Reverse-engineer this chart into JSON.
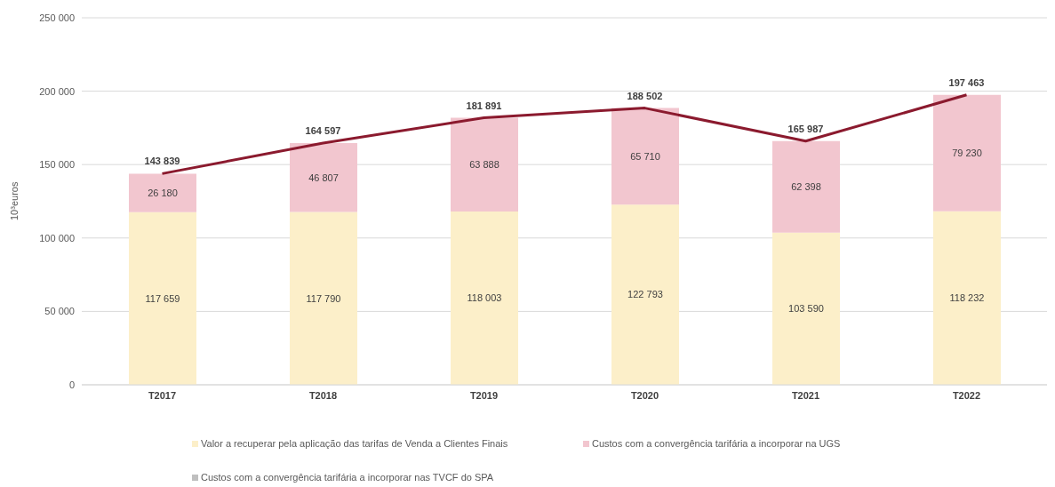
{
  "chart_data": {
    "type": "bar",
    "stacked": true,
    "ylabel": "10³euros",
    "categories": [
      "T2017",
      "T2018",
      "T2019",
      "T2020",
      "T2021",
      "T2022"
    ],
    "series": [
      {
        "name": "Valor a recuperar pela aplicação das tarifas de Venda a Clientes Finais",
        "color": "#fcefc9",
        "values": [
          117659,
          117790,
          118003,
          122793,
          103590,
          118232
        ],
        "value_labels": [
          "117 659",
          "117 790",
          "118 003",
          "122 793",
          "103 590",
          "118 232"
        ]
      },
      {
        "name": "Custos com a convergência tarifária a incorporar na UGS",
        "color": "#f2c6cf",
        "values": [
          26180,
          46807,
          63888,
          65710,
          62398,
          79230
        ],
        "value_labels": [
          "26 180",
          "46 807",
          "63 888",
          "65 710",
          "62 398",
          "79 230"
        ]
      },
      {
        "name": "Custos com a convergência tarifária a incorporar nas TVCF do SPA",
        "color": "#bfbfbf",
        "values": [
          0,
          0,
          0,
          0,
          0,
          0
        ]
      },
      {
        "type": "line",
        "color": "#8b1a2e",
        "values": [
          143839,
          164597,
          181891,
          188502,
          165987,
          197463
        ],
        "value_labels": [
          "143 839",
          "164 597",
          "181 891",
          "188 502",
          "165 987",
          "197 463"
        ]
      }
    ],
    "ylim": [
      0,
      250000
    ],
    "yticks": [
      {
        "value": 0,
        "label": "0"
      },
      {
        "value": 50000,
        "label": "50 000"
      },
      {
        "value": 100000,
        "label": "100 000"
      },
      {
        "value": 150000,
        "label": "150 000"
      },
      {
        "value": 200000,
        "label": "200 000"
      },
      {
        "value": 250000,
        "label": "250 000"
      }
    ],
    "grid": "y",
    "legend": "bottom",
    "marker": "none",
    "line_style": "solid"
  }
}
